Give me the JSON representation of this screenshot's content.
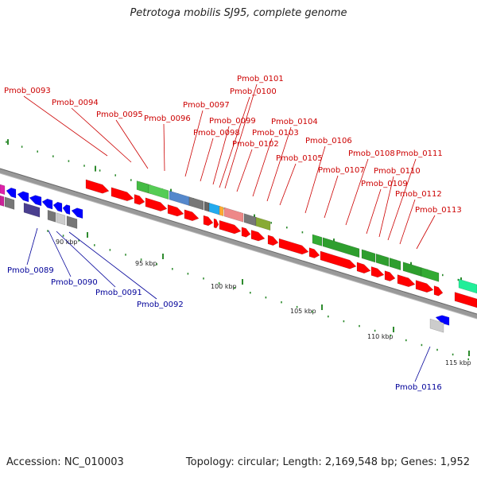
{
  "title": "Petrotoga mobilis SJ95, complete genome",
  "footer": {
    "accession_label": "Accession:",
    "accession": "NC_010003",
    "topology_text": "Topology: circular; Length: 2,169,548 bp; Genes: 1,952"
  },
  "colors": {
    "forward_label": "#cc0000",
    "reverse_label": "#000099",
    "forward_gene": "#ff0000",
    "reverse_gene": "#0000ff",
    "backbone": "#888888",
    "ruler_tick": "#2e8b2e"
  },
  "ruler_labels": [
    "90 kbp",
    "95 kbp",
    "100 kbp",
    "105 kbp",
    "110 kbp",
    "115 kbp"
  ],
  "forward_gene_labels": [
    "Pmob_0093",
    "Pmob_0094",
    "Pmob_0095",
    "Pmob_0096",
    "Pmob_0097",
    "Pmob_0098",
    "Pmob_0099",
    "Pmob_0100",
    "Pmob_0101",
    "Pmob_0102",
    "Pmob_0103",
    "Pmob_0104",
    "Pmob_0105",
    "Pmob_0106",
    "Pmob_0107",
    "Pmob_0108",
    "Pmob_0109",
    "Pmob_0110",
    "Pmob_0111",
    "Pmob_0112",
    "Pmob_0113"
  ],
  "reverse_gene_labels": [
    "Pmob_0089",
    "Pmob_0090",
    "Pmob_0091",
    "Pmob_0092",
    "Pmob_0116"
  ]
}
